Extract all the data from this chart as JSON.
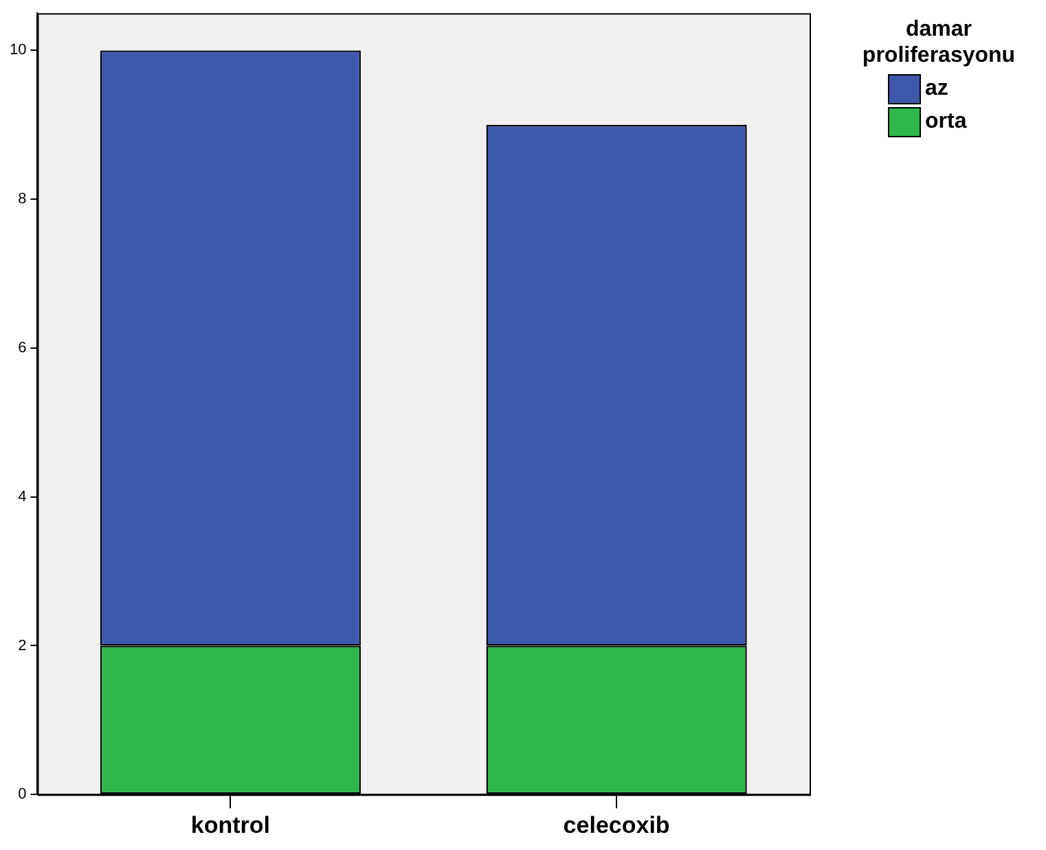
{
  "chart_data": {
    "type": "bar",
    "stacked": true,
    "categories": [
      "kontrol",
      "celecoxib"
    ],
    "series": [
      {
        "name": "orta",
        "color": "#2eb84b",
        "values": [
          2,
          2
        ]
      },
      {
        "name": "az",
        "color": "#3d58aa",
        "values": [
          8,
          7
        ]
      }
    ],
    "ylim": [
      0,
      10.5
    ],
    "yticks": [
      0,
      2,
      4,
      6,
      8,
      10
    ],
    "grid": false,
    "legend": "top right",
    "legend_title": "damar proliferasyonu"
  }
}
